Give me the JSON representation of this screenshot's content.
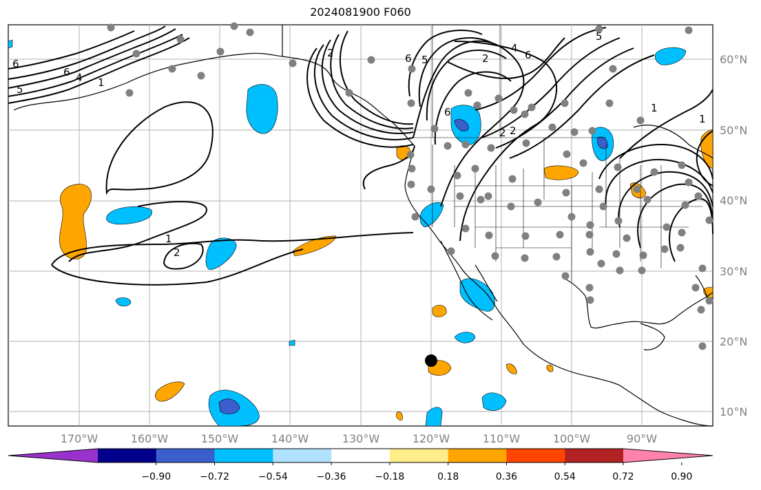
{
  "title": "2024081900 F060",
  "lat_labels": [
    "60°N",
    "50°N",
    "40°N",
    "30°N",
    "20°N",
    "10°N"
  ],
  "lon_labels": [
    "170°W",
    "160°W",
    "150°W",
    "140°W",
    "130°W",
    "120°W",
    "110°W",
    "100°W",
    "90°W"
  ],
  "colorbar": {
    "ticks": [
      "−0.90",
      "−0.72",
      "−0.54",
      "−0.36",
      "−0.18",
      "0.18",
      "0.36",
      "0.54",
      "0.72",
      "0.90"
    ],
    "colors": [
      "#9932cc",
      "#00008b",
      "#3a5fcd",
      "#00bfff",
      "#b0e2ff",
      "#ffffff",
      "#ffec8b",
      "#ffa500",
      "#ff4500",
      "#b22222",
      "#ff82ab"
    ]
  },
  "contour_labels": [
    "1",
    "2",
    "4",
    "5",
    "6"
  ],
  "colors": {
    "land": "#ffffff",
    "grid": "#b0b0b0",
    "station": "#808080",
    "contour": "#000000",
    "positive": "#ffa500",
    "negative": "#00bfff",
    "strong_negative": "#3a5fcd"
  }
}
